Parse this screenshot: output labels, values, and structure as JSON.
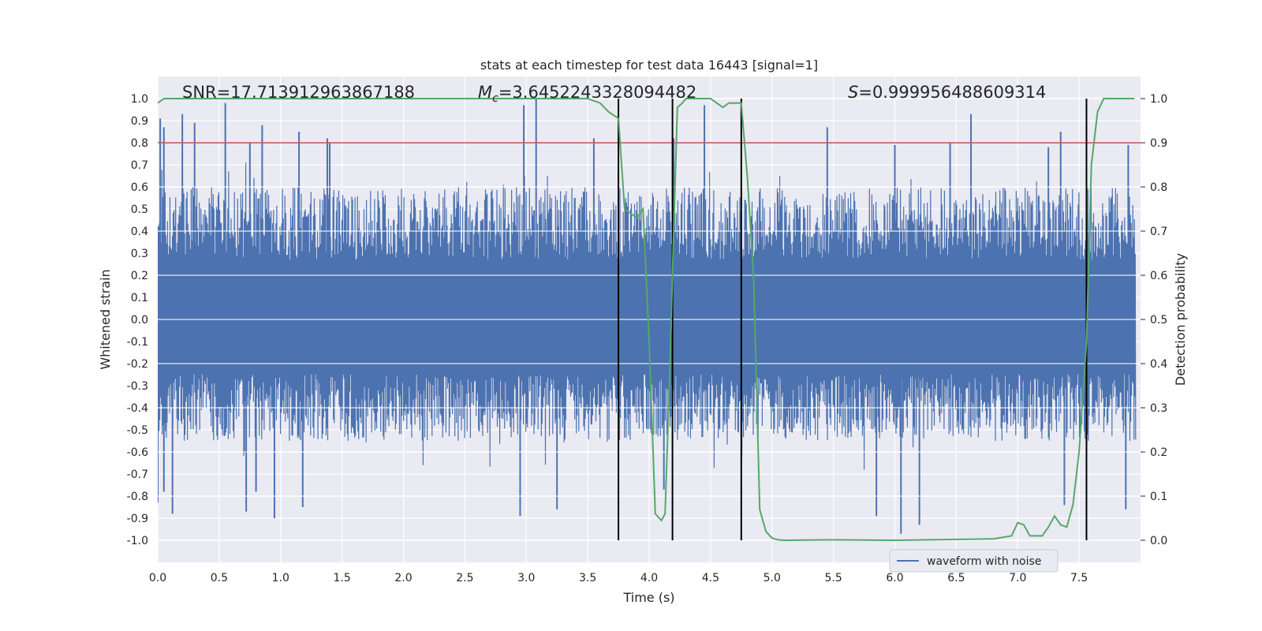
{
  "chart_data": {
    "type": "line",
    "title": "stats at each timestep for test data 16443 [signal=1]",
    "xlabel": "Time (s)",
    "ylabel": "Whitened strain",
    "y2label": "Detection probability",
    "xlim": [
      0,
      8
    ],
    "ylim": [
      -1.1,
      1.1
    ],
    "y2lim": [
      -0.05,
      1.05
    ],
    "xticks": [
      0.0,
      0.5,
      1.0,
      1.5,
      2.0,
      2.5,
      3.0,
      3.5,
      4.0,
      4.5,
      5.0,
      5.5,
      6.0,
      6.5,
      7.0,
      7.5
    ],
    "xtick_labels": [
      "0.0",
      "0.5",
      "1.0",
      "1.5",
      "2.0",
      "2.5",
      "3.0",
      "3.5",
      "4.0",
      "4.5",
      "5.0",
      "5.5",
      "6.0",
      "6.5",
      "7.0",
      "7.5"
    ],
    "yticks": [
      1.0,
      0.9,
      0.8,
      0.7,
      0.6,
      0.5,
      0.4,
      0.3,
      0.2,
      0.1,
      0.0,
      -0.1,
      -0.2,
      -0.3,
      -0.4,
      -0.5,
      -0.6,
      -0.7,
      -0.8,
      -0.9,
      -1.0
    ],
    "ytick_labels": [
      "1.0",
      "0.9",
      "0.8",
      "0.7",
      "0.6",
      "0.5",
      "0.4",
      "0.3",
      "0.2",
      "0.1",
      "0.0",
      "-0.1",
      "-0.2",
      "-0.3",
      "-0.4",
      "-0.5",
      "-0.6",
      "-0.7",
      "-0.8",
      "-0.9",
      "-1.0"
    ],
    "y2ticks": [
      0.0,
      0.1,
      0.2,
      0.3,
      0.4,
      0.5,
      0.6,
      0.7,
      0.8,
      0.9,
      1.0
    ],
    "y2tick_labels": [
      "0.0",
      "0.1",
      "0.2",
      "0.3",
      "0.4",
      "0.5",
      "0.6",
      "0.7",
      "0.8",
      "0.9",
      "1.0"
    ],
    "threshold": {
      "value": 0.9,
      "axis": "y2",
      "color": "#c44e52"
    },
    "vlines": [
      3.75,
      4.19,
      4.75,
      7.56
    ],
    "annotations": {
      "snr": "SNR=17.713912963867188",
      "mc_symbol": "M",
      "mc_sub": "c",
      "mc_value": "=3.6452243328094482",
      "s_symbol": "S",
      "s_value": "=0.999956488609314"
    },
    "legend": {
      "label": "waveform with noise",
      "position": "lower-right"
    },
    "series": [
      {
        "name": "waveform with noise",
        "axis": "y",
        "color": "#4c72b0",
        "envelope_upper": 0.6,
        "envelope_lower": -0.55,
        "peaks": [
          [
            0.02,
            0.91
          ],
          [
            0.05,
            0.87
          ],
          [
            0.2,
            0.93
          ],
          [
            0.3,
            0.89
          ],
          [
            0.55,
            0.98
          ],
          [
            0.75,
            0.8
          ],
          [
            0.85,
            0.88
          ],
          [
            1.15,
            0.85
          ],
          [
            1.38,
            0.82
          ],
          [
            1.4,
            0.8
          ],
          [
            2.98,
            0.97
          ],
          [
            3.08,
            1.0
          ],
          [
            3.55,
            0.82
          ],
          [
            4.2,
            0.82
          ],
          [
            4.45,
            0.97
          ],
          [
            5.45,
            0.87
          ],
          [
            6.0,
            0.79
          ],
          [
            6.45,
            0.8
          ],
          [
            6.62,
            0.93
          ],
          [
            7.25,
            0.78
          ],
          [
            7.35,
            0.85
          ],
          [
            7.9,
            0.79
          ],
          [
            0.0,
            -0.83
          ],
          [
            0.05,
            -0.78
          ],
          [
            0.12,
            -0.88
          ],
          [
            0.72,
            -0.87
          ],
          [
            0.8,
            -0.78
          ],
          [
            0.95,
            -0.9
          ],
          [
            1.18,
            -0.85
          ],
          [
            2.95,
            -0.89
          ],
          [
            3.25,
            -0.86
          ],
          [
            4.12,
            -0.77
          ],
          [
            5.85,
            -0.89
          ],
          [
            6.05,
            -0.97
          ],
          [
            6.2,
            -0.93
          ],
          [
            7.38,
            -0.84
          ],
          [
            7.88,
            -0.86
          ]
        ]
      },
      {
        "name": "detection probability",
        "axis": "y2",
        "color": "#55a868",
        "x": [
          0.0,
          0.05,
          0.1,
          3.5,
          3.6,
          3.67,
          3.75,
          3.8,
          3.9,
          3.95,
          4.0,
          4.05,
          4.1,
          4.13,
          4.17,
          4.2,
          4.23,
          4.27,
          4.3,
          4.35,
          4.4,
          4.5,
          4.6,
          4.65,
          4.7,
          4.75,
          4.8,
          4.85,
          4.9,
          4.95,
          5.0,
          5.05,
          5.1,
          5.5,
          6.0,
          6.5,
          6.8,
          6.95,
          7.0,
          7.05,
          7.1,
          7.2,
          7.25,
          7.3,
          7.35,
          7.4,
          7.45,
          7.5,
          7.56,
          7.6,
          7.65,
          7.7,
          7.75,
          7.95
        ],
        "y": [
          0.99,
          1.0,
          1.0,
          1.0,
          0.99,
          0.97,
          0.955,
          0.75,
          0.73,
          0.75,
          0.45,
          0.06,
          0.045,
          0.06,
          0.4,
          0.7,
          0.98,
          0.99,
          1.0,
          1.0,
          1.0,
          1.0,
          0.98,
          0.99,
          0.99,
          0.99,
          0.82,
          0.6,
          0.07,
          0.02,
          0.005,
          0.001,
          0.0,
          0.001,
          0.0,
          0.002,
          0.003,
          0.01,
          0.04,
          0.035,
          0.01,
          0.01,
          0.03,
          0.055,
          0.035,
          0.03,
          0.08,
          0.2,
          0.45,
          0.85,
          0.97,
          1.0,
          1.0,
          1.0
        ]
      }
    ]
  }
}
